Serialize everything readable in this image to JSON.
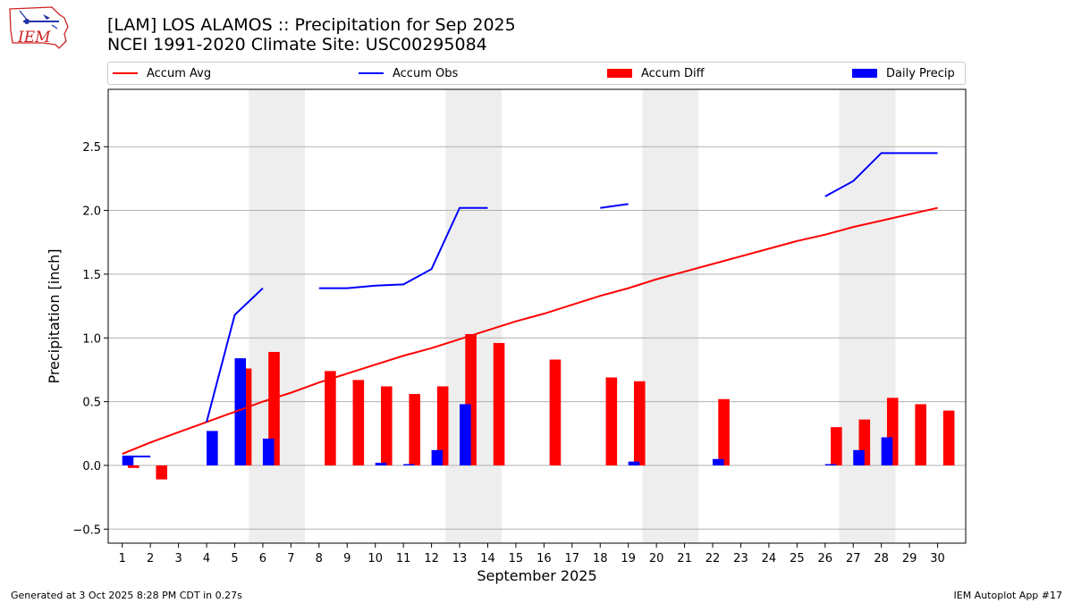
{
  "header": {
    "title_line1": "[LAM] LOS ALAMOS :: Precipitation for Sep 2025",
    "title_line2": "NCEI 1991-2020 Climate Site: USC00295084",
    "logo_text": "IEM"
  },
  "legend": {
    "accum_avg": "Accum Avg",
    "accum_obs": "Accum Obs",
    "accum_diff": "Accum Diff",
    "daily_precip": "Daily Precip"
  },
  "colors": {
    "accum_avg": "#ff0000",
    "accum_obs": "#0000ff",
    "accum_diff": "#ff0000",
    "daily_precip": "#0000ff",
    "weekend_shade": "#eeeeee",
    "grid": "#b0b0b0"
  },
  "footer": {
    "generated": "Generated at 3 Oct 2025 8:28 PM CDT in 0.27s",
    "app": "IEM Autoplot App #17"
  },
  "chart_data": {
    "type": "bar",
    "title": "[LAM] LOS ALAMOS :: Precipitation for Sep 2025",
    "xlabel": "September 2025",
    "ylabel": "Precipitation [inch]",
    "xlim": [
      0.5,
      31
    ],
    "ylim": [
      -0.61,
      2.95
    ],
    "yticks": [
      -0.5,
      0.0,
      0.5,
      1.0,
      1.5,
      2.0,
      2.5
    ],
    "ytick_labels": [
      "−0.5",
      "0.0",
      "0.5",
      "1.0",
      "1.5",
      "2.0",
      "2.5"
    ],
    "grid": "horizontal",
    "days": [
      1,
      2,
      3,
      4,
      5,
      6,
      7,
      8,
      9,
      10,
      11,
      12,
      13,
      14,
      15,
      16,
      17,
      18,
      19,
      20,
      21,
      22,
      23,
      24,
      25,
      26,
      27,
      28,
      29,
      30
    ],
    "day_labels": [
      "1",
      "2",
      "3",
      "4",
      "5",
      "6",
      "7",
      "8",
      "9",
      "10",
      "11",
      "12",
      "13",
      "14",
      "15",
      "16",
      "17",
      "18",
      "19",
      "20",
      "21",
      "22",
      "23",
      "24",
      "25",
      "26",
      "27",
      "28",
      "29",
      "30"
    ],
    "weekend_shading": [
      [
        6,
        7
      ],
      [
        13,
        14
      ],
      [
        20,
        21
      ],
      [
        27,
        28
      ]
    ],
    "accum_avg": [
      0.09,
      0.18,
      0.26,
      0.34,
      0.42,
      0.5,
      0.57,
      0.65,
      0.72,
      0.79,
      0.86,
      0.92,
      0.99,
      1.06,
      1.13,
      1.19,
      1.26,
      1.33,
      1.39,
      1.46,
      1.52,
      1.58,
      1.64,
      1.7,
      1.76,
      1.81,
      1.87,
      1.92,
      1.97,
      2.02
    ],
    "accum_obs_segments": [
      [
        [
          1,
          0.07
        ],
        [
          2,
          0.07
        ]
      ],
      [
        [
          4,
          0.34
        ],
        [
          5,
          1.18
        ],
        [
          6,
          1.39
        ]
      ],
      [
        [
          8,
          1.39
        ],
        [
          9,
          1.39
        ],
        [
          10,
          1.41
        ],
        [
          11,
          1.42
        ],
        [
          12,
          1.54
        ],
        [
          13,
          2.02
        ],
        [
          14,
          2.02
        ]
      ],
      [
        [
          18,
          2.02
        ],
        [
          19,
          2.05
        ]
      ],
      [
        [
          26,
          2.11
        ],
        [
          27,
          2.23
        ],
        [
          28,
          2.45
        ],
        [
          29,
          2.45
        ],
        [
          30,
          2.45
        ]
      ]
    ],
    "series": [
      {
        "name": "Accum Diff",
        "values": [
          -0.02,
          -0.11,
          null,
          null,
          0.76,
          0.89,
          null,
          0.74,
          0.67,
          0.62,
          0.56,
          0.62,
          1.03,
          0.96,
          null,
          0.83,
          null,
          0.69,
          0.66,
          null,
          null,
          0.52,
          null,
          null,
          null,
          0.3,
          0.36,
          0.53,
          0.48,
          0.43
        ]
      },
      {
        "name": "Daily Precip",
        "values": [
          0.07,
          null,
          null,
          0.27,
          0.84,
          0.21,
          null,
          null,
          null,
          0.02,
          0.01,
          0.12,
          0.48,
          null,
          null,
          null,
          null,
          null,
          0.03,
          null,
          null,
          0.05,
          null,
          null,
          null,
          0.01,
          0.12,
          0.22,
          null,
          null
        ]
      }
    ]
  }
}
